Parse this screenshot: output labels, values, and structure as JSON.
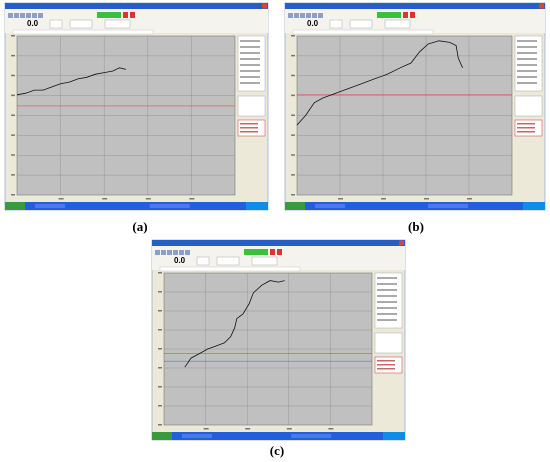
{
  "panels": [
    {
      "label": "(a)",
      "readout": "0.0"
    },
    {
      "label": "(b)",
      "readout": "0.0"
    },
    {
      "label": "(c)",
      "readout": "0.0"
    }
  ]
}
